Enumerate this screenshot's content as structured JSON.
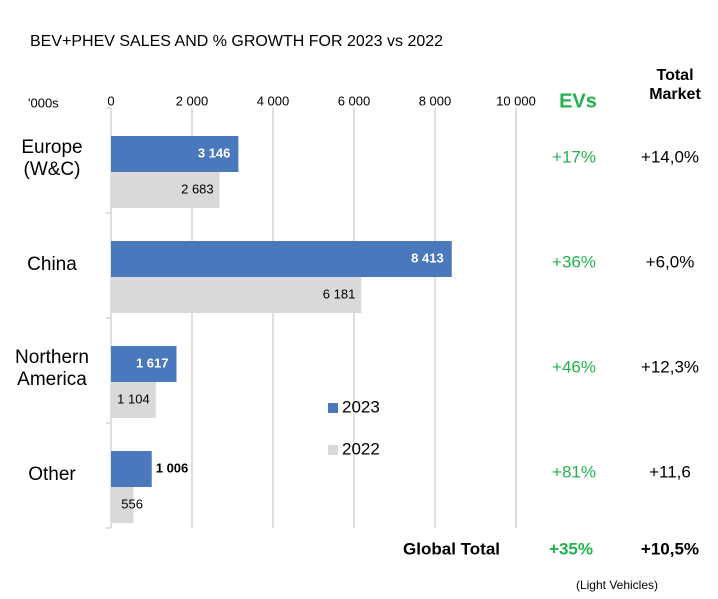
{
  "chart_data": {
    "type": "bar",
    "orientation": "horizontal",
    "title": "BEV+PHEV SALES AND % GROWTH FOR 2023 vs 2022",
    "unit_label": "'000s",
    "categories": [
      "Europe\n(W&C)",
      "China",
      "Northern\nAmerica",
      "Other"
    ],
    "xlim": [
      0,
      10000
    ],
    "xticks": [
      0,
      {
        "value": 2000,
        "label": "2 000"
      },
      {
        "value": 4000,
        "label": "4 000"
      },
      {
        "value": 6000,
        "label": "6 000"
      },
      {
        "value": 8000,
        "label": "8 000"
      },
      {
        "value": 10000,
        "label": "10 000"
      }
    ],
    "grid": true,
    "series": [
      {
        "name": "2023",
        "color": "#4a78bd",
        "values": [
          3146,
          8413,
          1617,
          1006
        ],
        "value_labels": [
          "3 146",
          "8 413",
          "1 617",
          "1 006"
        ]
      },
      {
        "name": "2022",
        "color": "#d9d9d9",
        "values": [
          2683,
          6181,
          1104,
          556
        ],
        "value_labels": [
          "2 683",
          "6 181",
          "1 104",
          "556"
        ]
      }
    ],
    "ev_header": "EVs",
    "market_header": "Total\nMarket",
    "ev_growth": [
      "+17%",
      "+36%",
      "+46%",
      "+81%"
    ],
    "market_growth": [
      "+14,0%",
      "+6,0%",
      "+12,3%",
      "+11,6"
    ],
    "total_label": "Global Total",
    "total_ev_growth": "+35%",
    "total_market_growth": "+10,5%",
    "footnote": "(Light Vehicles)"
  }
}
